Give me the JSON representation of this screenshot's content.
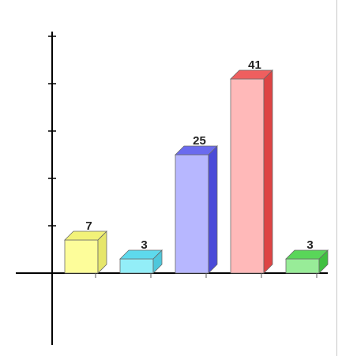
{
  "chart_data": {
    "type": "bar",
    "categories": [
      "",
      "",
      "",
      "",
      ""
    ],
    "values": [
      7,
      3,
      25,
      41,
      3
    ],
    "data_labels": [
      "7",
      "3",
      "25",
      "41",
      "3"
    ],
    "colors": [
      "#fdfd9a",
      "#93eef8",
      "#b7b7ff",
      "#ffb9b9",
      "#98ec98"
    ],
    "top_colors": [
      "#f2f279",
      "#5ed9ec",
      "#6b6bee",
      "#ee5f5f",
      "#59d659"
    ],
    "side_colors": [
      "#e6e66a",
      "#4fc7db",
      "#4a4ad8",
      "#dd4444",
      "#3fbf3f"
    ],
    "ylim": [
      -30,
      50
    ],
    "ytick_step": 10,
    "grid": false,
    "legend": false,
    "title": "",
    "xlabel": "",
    "ylabel": ""
  }
}
